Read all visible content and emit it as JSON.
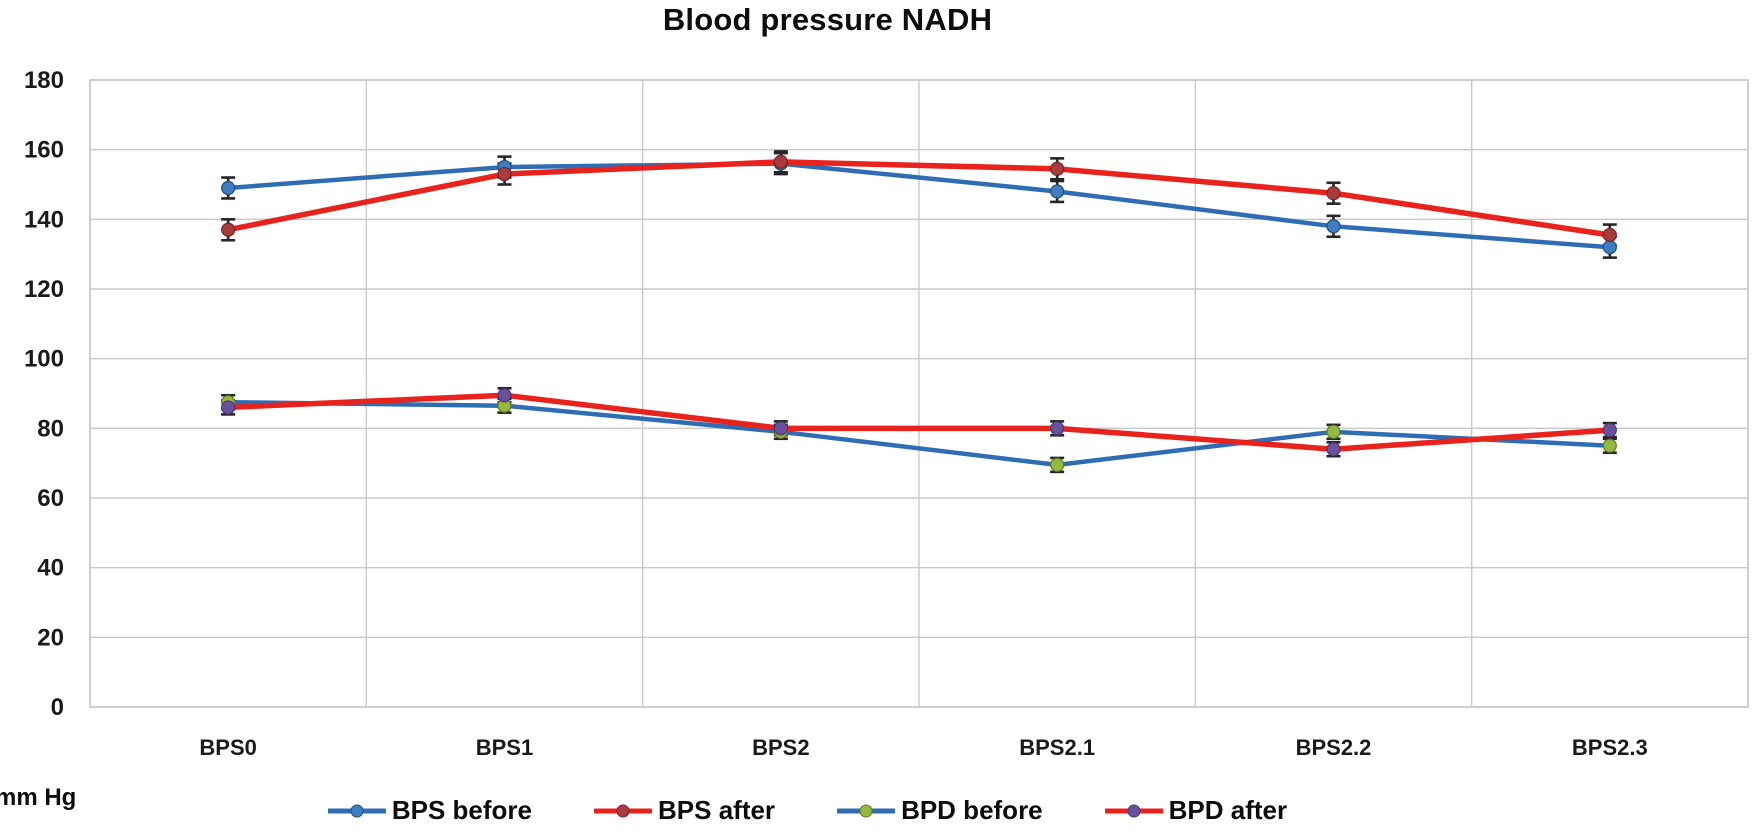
{
  "chart_data": {
    "type": "line",
    "title": "Blood pressure NADH",
    "unit_label": "mm Hg",
    "categories": [
      "BPS0",
      "BPS1",
      "BPS2",
      "BPS2.1",
      "BPS2.2",
      "BPS2.3"
    ],
    "xlabel": "",
    "ylabel": "mm Hg",
    "ylim": [
      0,
      180
    ],
    "ytick_step": 20,
    "grid": true,
    "legend_position": "bottom",
    "series": [
      {
        "name": "BPS before",
        "line_color": "#2e6db4",
        "marker_color": "#3f7dc2",
        "marker_edge": "#1f4e79",
        "values": [
          149,
          155,
          156,
          148,
          138,
          132
        ],
        "error": 3
      },
      {
        "name": "BPS after",
        "line_color": "#e8231c",
        "marker_color": "#a83b3b",
        "marker_edge": "#7a2323",
        "values": [
          137,
          153,
          156.5,
          154.5,
          147.5,
          135.5
        ],
        "error": 3
      },
      {
        "name": "BPD before",
        "line_color": "#2e6db4",
        "marker_color": "#94ba3d",
        "marker_edge": "#5f7d1e",
        "values": [
          87.5,
          86.5,
          79,
          69.5,
          79,
          75
        ],
        "error": 2
      },
      {
        "name": "BPD after",
        "line_color": "#e8231c",
        "marker_color": "#6a51a0",
        "marker_edge": "#4a3575",
        "values": [
          86,
          89.5,
          80,
          80,
          74,
          79.5
        ],
        "error": 2
      }
    ],
    "error_bar_color": "#262626",
    "grid_color": "#c9c9c9",
    "text_color": "#1a1a1a",
    "background_color": "#ffffff"
  }
}
